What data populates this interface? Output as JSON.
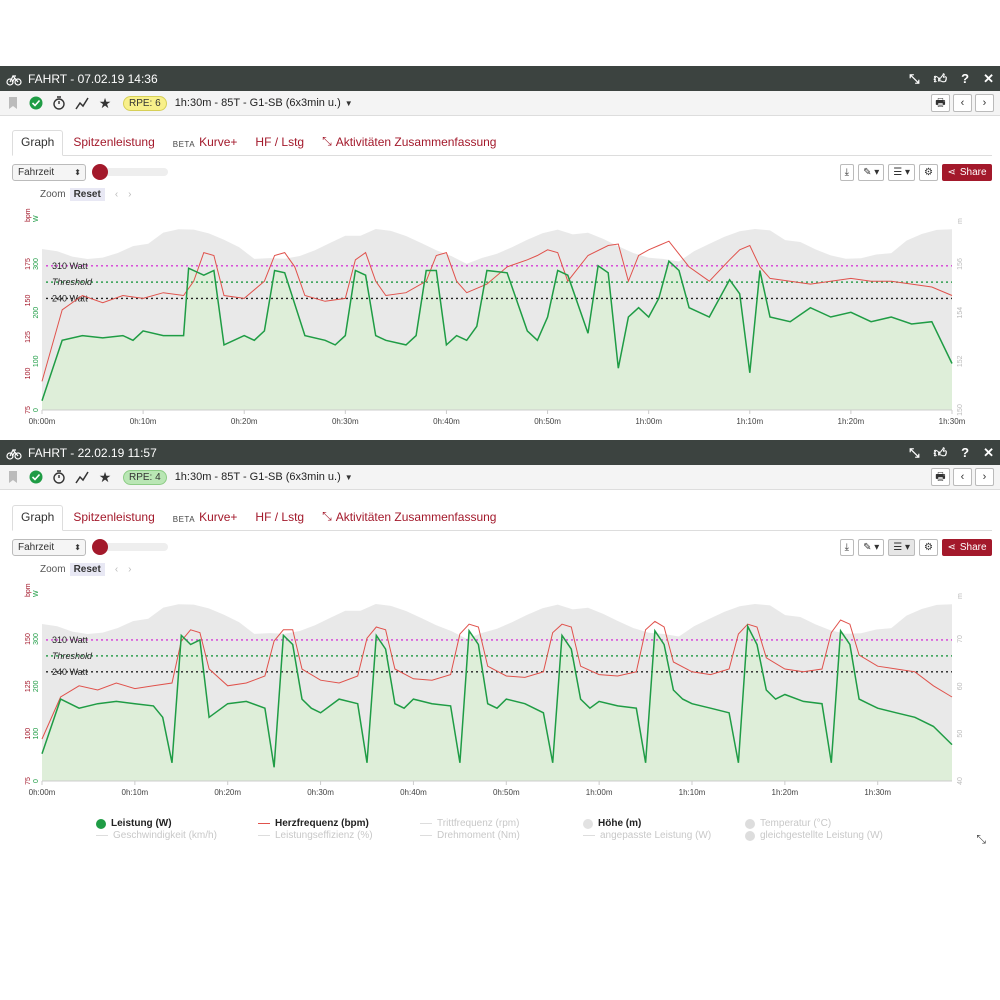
{
  "panels": [
    {
      "title": "FAHRT - 07.02.19 14:36",
      "rpe": "RPE: 6",
      "workout": "1h:30m - 85T - G1-SB (6x3min u.)",
      "tabs": [
        "Graph",
        "Spitzenleistung",
        "Kurve+",
        "HF / Lstg",
        "Aktivitäten Zusammenfassung"
      ],
      "beta": "BETA",
      "select": "Fahrzeit",
      "zoom": "Zoom",
      "reset": "Reset",
      "share": "Share",
      "unit_bpm": "bpm",
      "unit_w": "W",
      "unit_right": "m",
      "lines": [
        "310 Watt",
        "Threshold",
        "240 Watt"
      ],
      "y_left_bpm": [
        "175",
        "150",
        "125",
        "100",
        "75"
      ],
      "y_left_w": [
        "300",
        "200",
        "100",
        "0"
      ],
      "y_right": [
        "156",
        "154",
        "152",
        "150"
      ],
      "x_ticks": [
        "0h:00m",
        "0h:10m",
        "0h:20m",
        "0h:30m",
        "0h:40m",
        "0h:50m",
        "1h:00m",
        "1h:10m",
        "1h:20m",
        "1h:30m"
      ]
    },
    {
      "title": "FAHRT - 22.02.19 11:57",
      "rpe": "RPE: 4",
      "workout": "1h:30m - 85T - G1-SB (6x3min u.)",
      "tabs": [
        "Graph",
        "Spitzenleistung",
        "Kurve+",
        "HF / Lstg",
        "Aktivitäten Zusammenfassung"
      ],
      "beta": "BETA",
      "select": "Fahrzeit",
      "zoom": "Zoom",
      "reset": "Reset",
      "share": "Share",
      "unit_bpm": "bpm",
      "unit_w": "W",
      "unit_right": "m",
      "lines": [
        "310 Watt",
        "Threshold",
        "240 Watt"
      ],
      "y_left_bpm": [
        "150",
        "125",
        "100",
        "75"
      ],
      "y_left_w": [
        "300",
        "200",
        "100",
        "0"
      ],
      "y_right": [
        "70",
        "60",
        "50",
        "40"
      ],
      "x_ticks": [
        "0h:00m",
        "0h:10m",
        "0h:20m",
        "0h:30m",
        "0h:40m",
        "0h:50m",
        "1h:00m",
        "1h:10m",
        "1h:20m",
        "1h:30m"
      ]
    }
  ],
  "legend": [
    {
      "label": "Leistung (W)",
      "state": "on",
      "marker": "dot",
      "color": "#1f9c45"
    },
    {
      "label": "Herzfrequenz (bpm)",
      "state": "on",
      "marker": "line",
      "color": "#e0524c"
    },
    {
      "label": "Trittfrequenz (rpm)",
      "state": "off",
      "marker": "line",
      "color": "#cccccc"
    },
    {
      "label": "Höhe (m)",
      "state": "on",
      "marker": "dot",
      "color": "#d8d8d8"
    },
    {
      "label": "Temperatur (°C)",
      "state": "off",
      "marker": "dot",
      "color": "#cccccc"
    },
    {
      "label": "Geschwindigkeit (km/h)",
      "state": "off",
      "marker": "line",
      "color": "#cccccc"
    },
    {
      "label": "Leistungseffizienz (%)",
      "state": "off",
      "marker": "line",
      "color": "#cccccc"
    },
    {
      "label": "Drehmoment (Nm)",
      "state": "off",
      "marker": "line",
      "color": "#cccccc"
    },
    {
      "label": "angepasste Leistung (W)",
      "state": "off",
      "marker": "line",
      "color": "#cccccc"
    },
    {
      "label": "gleichgestellte Leistung (W)",
      "state": "off",
      "marker": "dot",
      "color": "#cccccc"
    }
  ],
  "colors": {
    "power": "#1f9c45",
    "hr": "#e0524c",
    "elevation": "#e4e4e4",
    "line_310": "#d63ad6",
    "line_threshold": "#2f9f4f",
    "line_240": "#222222",
    "accent": "#a3192b"
  },
  "chart_data": [
    {
      "type": "line",
      "x_unit": "minutes",
      "xlim": [
        0,
        90
      ],
      "series": [
        {
          "name": "Leistung (W)",
          "x": [
            0,
            2,
            4,
            6,
            8,
            9,
            10,
            12,
            14,
            14.5,
            16,
            17,
            18,
            20,
            21,
            22,
            23,
            24,
            26,
            28,
            29,
            30,
            31,
            32,
            33,
            34,
            36,
            37,
            38,
            39,
            40,
            41,
            42,
            43,
            44,
            46,
            48,
            49,
            50,
            51,
            52,
            54,
            55,
            56,
            57,
            58,
            59,
            60,
            61,
            62,
            63,
            64,
            66,
            68,
            69,
            70,
            71,
            72,
            74,
            76,
            78,
            80,
            82,
            84,
            86,
            88,
            90
          ],
          "values": [
            20,
            150,
            160,
            155,
            160,
            150,
            170,
            160,
            160,
            305,
            290,
            300,
            140,
            160,
            150,
            170,
            300,
            295,
            160,
            150,
            140,
            160,
            300,
            290,
            160,
            150,
            140,
            160,
            300,
            300,
            140,
            160,
            150,
            180,
            300,
            295,
            170,
            150,
            200,
            300,
            290,
            165,
            310,
            295,
            90,
            200,
            220,
            200,
            240,
            320,
            300,
            220,
            200,
            280,
            250,
            80,
            300,
            200,
            190,
            220,
            200,
            210,
            190,
            200,
            185,
            190,
            100
          ]
        },
        {
          "name": "Herzfrequenz (bpm)",
          "x": [
            0,
            2,
            4,
            6,
            8,
            10,
            12,
            14,
            15,
            16,
            17,
            18,
            20,
            22,
            23,
            24,
            25,
            26,
            28,
            30,
            31,
            32,
            33,
            34,
            36,
            38,
            39,
            40,
            41,
            42,
            44,
            46,
            48,
            49,
            50,
            51,
            52,
            54,
            56,
            57,
            58,
            59,
            60,
            61,
            62,
            64,
            66,
            68,
            69,
            70,
            71,
            72,
            74,
            76,
            78,
            80,
            82,
            84,
            86,
            88,
            90
          ],
          "values": [
            80,
            130,
            140,
            135,
            140,
            138,
            142,
            140,
            150,
            170,
            168,
            140,
            138,
            150,
            168,
            170,
            160,
            140,
            136,
            138,
            165,
            170,
            150,
            140,
            142,
            150,
            168,
            170,
            150,
            142,
            148,
            160,
            165,
            168,
            172,
            170,
            150,
            168,
            175,
            176,
            150,
            168,
            172,
            175,
            178,
            160,
            150,
            165,
            172,
            175,
            160,
            152,
            150,
            148,
            150,
            152,
            150,
            150,
            148,
            146,
            140
          ]
        }
      ],
      "annotations": [
        "310 Watt",
        "Threshold",
        "240 Watt"
      ]
    },
    {
      "type": "line",
      "x_unit": "minutes",
      "xlim": [
        0,
        98
      ],
      "series": [
        {
          "name": "Leistung (W)",
          "x": [
            0,
            2,
            4,
            6,
            8,
            10,
            12,
            13,
            14,
            15,
            16,
            17,
            18,
            20,
            22,
            24,
            25,
            26,
            27,
            28,
            29,
            30,
            32,
            34,
            35,
            36,
            37,
            38,
            39,
            40,
            42,
            44,
            45,
            46,
            47,
            48,
            49,
            50,
            52,
            54,
            55,
            56,
            57,
            58,
            59,
            60,
            62,
            64,
            65,
            66,
            67,
            68,
            69,
            70,
            72,
            74,
            75,
            76,
            77,
            78,
            79,
            80,
            82,
            84,
            85,
            86,
            87,
            88,
            89,
            90,
            92,
            94,
            96,
            98
          ],
          "values": [
            60,
            180,
            160,
            170,
            175,
            170,
            165,
            140,
            40,
            320,
            300,
            310,
            140,
            170,
            175,
            160,
            30,
            320,
            300,
            180,
            160,
            150,
            180,
            170,
            40,
            320,
            290,
            170,
            160,
            180,
            170,
            165,
            40,
            330,
            300,
            170,
            160,
            180,
            170,
            150,
            40,
            320,
            290,
            180,
            160,
            175,
            165,
            160,
            40,
            330,
            300,
            200,
            180,
            170,
            160,
            150,
            40,
            340,
            300,
            200,
            180,
            190,
            175,
            170,
            40,
            330,
            300,
            180,
            170,
            160,
            150,
            140,
            120,
            80
          ]
        },
        {
          "name": "Herzfrequenz (bpm)",
          "x": [
            0,
            2,
            4,
            6,
            8,
            10,
            12,
            14,
            15,
            16,
            17,
            18,
            20,
            22,
            24,
            25,
            26,
            27,
            28,
            30,
            32,
            34,
            35,
            36,
            37,
            38,
            40,
            42,
            44,
            45,
            46,
            47,
            48,
            50,
            52,
            54,
            55,
            56,
            57,
            58,
            60,
            62,
            64,
            65,
            66,
            67,
            68,
            70,
            72,
            74,
            75,
            76,
            77,
            78,
            80,
            82,
            84,
            85,
            86,
            87,
            88,
            90,
            92,
            94,
            96,
            98
          ],
          "values": [
            90,
            120,
            128,
            125,
            130,
            126,
            128,
            130,
            160,
            168,
            166,
            140,
            128,
            130,
            135,
            160,
            168,
            168,
            140,
            132,
            130,
            135,
            162,
            170,
            168,
            140,
            133,
            132,
            136,
            165,
            172,
            170,
            142,
            135,
            134,
            138,
            166,
            172,
            170,
            142,
            136,
            135,
            138,
            168,
            174,
            170,
            145,
            138,
            136,
            140,
            165,
            172,
            170,
            148,
            140,
            138,
            140,
            166,
            175,
            172,
            150,
            142,
            140,
            138,
            128,
            120
          ]
        }
      ],
      "annotations": [
        "310 Watt",
        "Threshold",
        "240 Watt"
      ]
    }
  ]
}
